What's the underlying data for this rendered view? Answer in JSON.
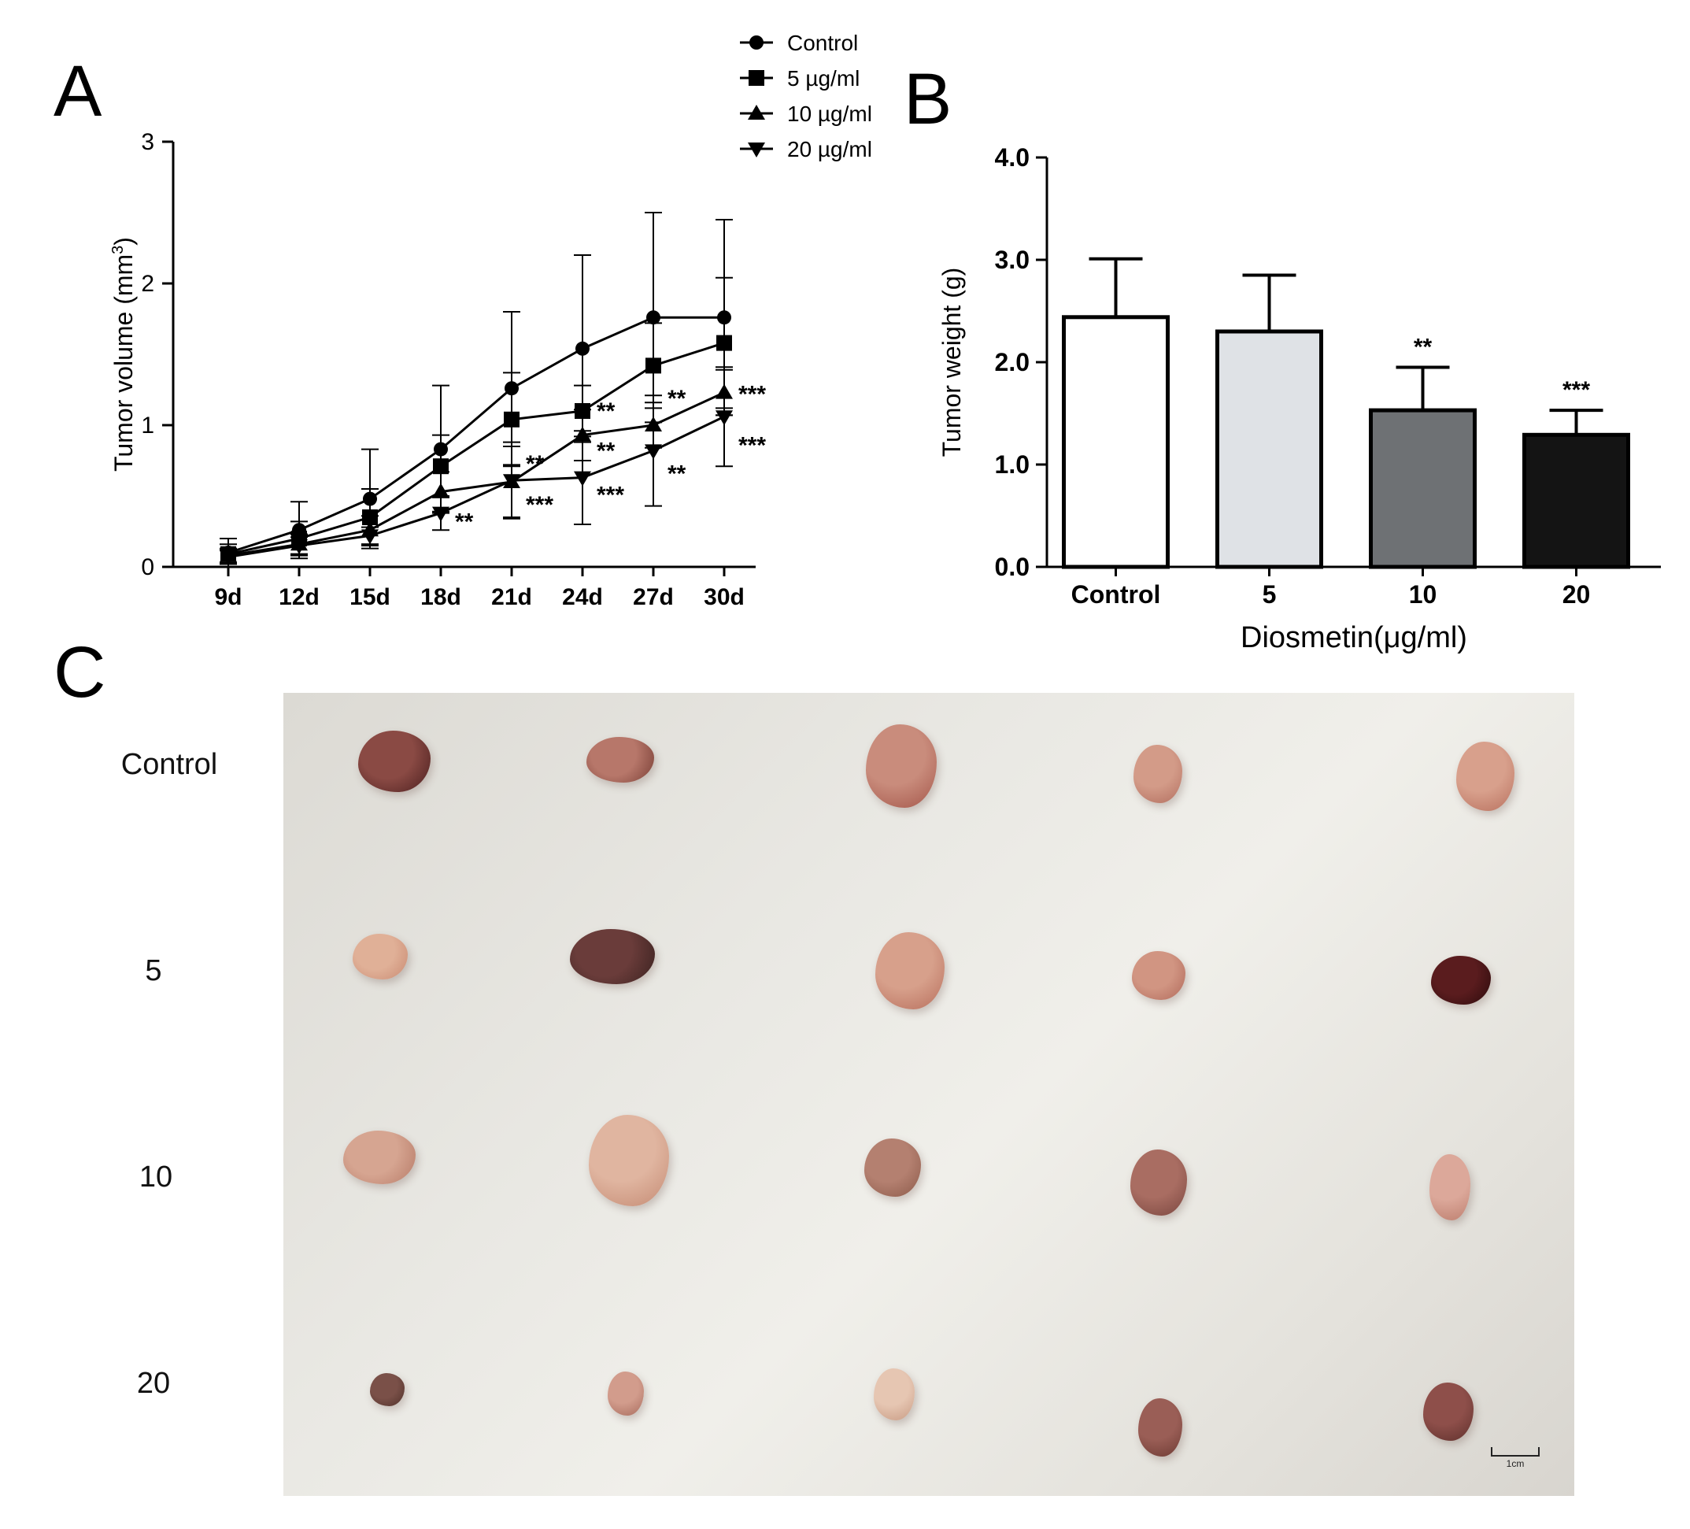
{
  "panel_labels": {
    "a": "A",
    "b": "B",
    "c": "C"
  },
  "chart_data": [
    {
      "type": "line",
      "title": "",
      "xlabel": "",
      "ylabel": "Tumor volume (mm³)",
      "ylabel_main": "Tumor volume (mm",
      "ylabel_sup": "3",
      "ylabel_end": ")",
      "categories": [
        "9d",
        "12d",
        "15d",
        "18d",
        "21d",
        "24d",
        "27d",
        "30d"
      ],
      "ylim": [
        0,
        3
      ],
      "yticks": [
        "0",
        "1",
        "2",
        "3"
      ],
      "legend_position": "top-right",
      "series": [
        {
          "name": "Control",
          "marker": "circle",
          "values": [
            0.1,
            0.26,
            0.48,
            0.83,
            1.26,
            1.54,
            1.76,
            1.76
          ],
          "errors": [
            0.1,
            0.2,
            0.35,
            0.45,
            0.54,
            0.66,
            0.74,
            0.69
          ]
        },
        {
          "name": "5 µg/ml",
          "marker": "square",
          "values": [
            0.09,
            0.2,
            0.35,
            0.71,
            1.04,
            1.1,
            1.42,
            1.58
          ],
          "errors": [
            0.07,
            0.12,
            0.2,
            0.22,
            0.33,
            0.18,
            0.3,
            0.46
          ]
        },
        {
          "name": "10 µg/ml",
          "marker": "triangle-up",
          "values": [
            0.08,
            0.16,
            0.26,
            0.53,
            0.6,
            0.93,
            1.0,
            1.23
          ],
          "errors": [
            0.05,
            0.07,
            0.1,
            0.14,
            0.25,
            0.18,
            0.16,
            0.16
          ]
        },
        {
          "name": "20 µg/ml",
          "marker": "triangle-down",
          "values": [
            0.07,
            0.15,
            0.22,
            0.38,
            0.61,
            0.63,
            0.82,
            1.06
          ],
          "errors": [
            0.05,
            0.06,
            0.06,
            0.12,
            0.27,
            0.33,
            0.39,
            0.35
          ]
        }
      ],
      "annotations": [
        {
          "text": "**",
          "x": "24d",
          "y": 1.11
        },
        {
          "text": "**",
          "x": "27d",
          "y": 1.2
        },
        {
          "text": "***",
          "x": "30d",
          "y": 1.23
        },
        {
          "text": "**",
          "x": "21d",
          "y": 0.74
        },
        {
          "text": "**",
          "x": "24d",
          "y": 0.83
        },
        {
          "text": "**",
          "x": "18d",
          "y": 0.33
        },
        {
          "text": "***",
          "x": "21d",
          "y": 0.45
        },
        {
          "text": "***",
          "x": "24d",
          "y": 0.52
        },
        {
          "text": "**",
          "x": "27d",
          "y": 0.67
        },
        {
          "text": "***",
          "x": "30d",
          "y": 0.87
        }
      ]
    },
    {
      "type": "bar",
      "title": "",
      "xlabel": "Diosmetin(μg/ml)",
      "ylabel": "Tumor weight (g)",
      "categories": [
        "Control",
        "5",
        "10",
        "20"
      ],
      "values": [
        2.44,
        2.3,
        1.53,
        1.29
      ],
      "errors": [
        0.57,
        0.55,
        0.42,
        0.24
      ],
      "fill_colors": [
        "#ffffff",
        "#dfe2e6",
        "#6e7174",
        "#141414"
      ],
      "ylim": [
        0,
        4
      ],
      "yticks": [
        "0.0",
        "1.0",
        "2.0",
        "3.0",
        "4.0"
      ],
      "significance": [
        "",
        "",
        "**",
        "***"
      ]
    }
  ],
  "photo": {
    "row_labels": [
      "Control",
      "5",
      "10",
      "20"
    ],
    "scale_label": "1cm"
  }
}
